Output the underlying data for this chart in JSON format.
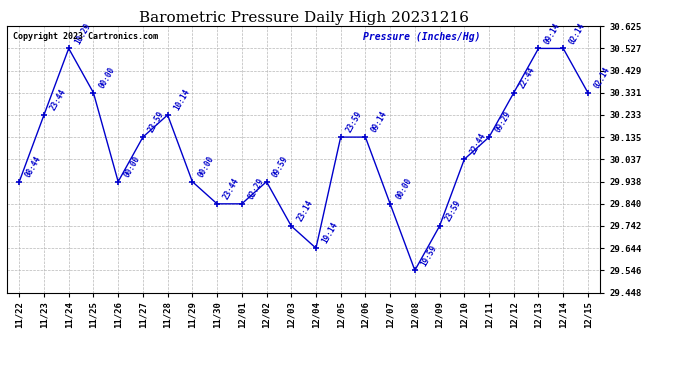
{
  "title": "Barometric Pressure Daily High 20231216",
  "ylabel": "Pressure (Inches/Hg)",
  "copyright": "Copyright 2023 Cartronics.com",
  "dates": [
    "11/22",
    "11/23",
    "11/24",
    "11/25",
    "11/26",
    "11/27",
    "11/28",
    "11/29",
    "11/30",
    "12/01",
    "12/02",
    "12/03",
    "12/04",
    "12/05",
    "12/06",
    "12/07",
    "12/08",
    "12/09",
    "12/10",
    "12/11",
    "12/12",
    "12/13",
    "12/14",
    "12/15"
  ],
  "values": [
    29.938,
    30.233,
    30.527,
    30.331,
    29.938,
    30.135,
    30.233,
    29.938,
    29.84,
    29.84,
    29.938,
    29.742,
    29.644,
    30.135,
    30.135,
    29.84,
    29.546,
    29.742,
    30.037,
    30.135,
    30.331,
    30.527,
    30.527,
    30.331
  ],
  "times": [
    "08:44",
    "23:44",
    "10:29",
    "00:00",
    "00:00",
    "23:59",
    "10:14",
    "00:00",
    "23:44",
    "02:29",
    "09:59",
    "23:14",
    "19:14",
    "23:59",
    "09:14",
    "00:00",
    "19:59",
    "23:59",
    "22:44",
    "09:29",
    "22:44",
    "09:14",
    "02:14",
    "02:14"
  ],
  "line_color": "#0000cc",
  "marker_color": "#0000cc",
  "label_color": "#0000cc",
  "bg_color": "#ffffff",
  "grid_color": "#b0b0b0",
  "title_color": "#000000",
  "copyright_color": "#000000",
  "ylabel_color": "#0000cc",
  "ylim_min": 29.448,
  "ylim_max": 30.625,
  "yticks": [
    29.448,
    29.546,
    29.644,
    29.742,
    29.84,
    29.938,
    30.037,
    30.135,
    30.233,
    30.331,
    30.429,
    30.527,
    30.625
  ]
}
